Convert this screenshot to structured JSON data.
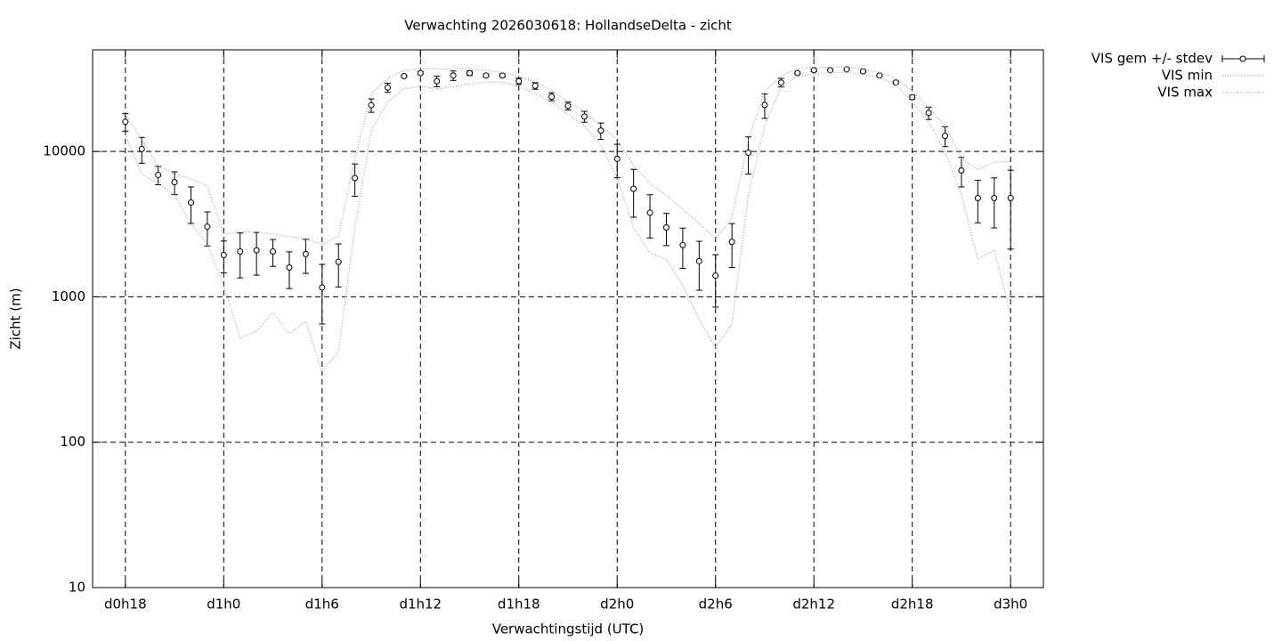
{
  "chart_data": {
    "type": "errorbar-line",
    "title": "Verwachting 2026030618: HollandseDelta - zicht",
    "xlabel": "Verwachtingstijd (UTC)",
    "ylabel": "Zicht (m)",
    "log_y": true,
    "grid": true,
    "xlim": [
      16,
      74
    ],
    "xticks": [
      {
        "value": 18,
        "label": "d0h18"
      },
      {
        "value": 24,
        "label": "d1h0"
      },
      {
        "value": 30,
        "label": "d1h6"
      },
      {
        "value": 36,
        "label": "d1h12"
      },
      {
        "value": 42,
        "label": "d1h18"
      },
      {
        "value": 48,
        "label": "d2h0"
      },
      {
        "value": 54,
        "label": "d2h6"
      },
      {
        "value": 60,
        "label": "d2h12"
      },
      {
        "value": 66,
        "label": "d2h18"
      },
      {
        "value": 72,
        "label": "d3h0"
      }
    ],
    "ylim": [
      10,
      50000
    ],
    "yticks": [
      10,
      100,
      1000,
      10000
    ],
    "x": [
      18,
      19,
      20,
      21,
      22,
      23,
      24,
      25,
      26,
      27,
      28,
      29,
      30,
      31,
      32,
      33,
      34,
      35,
      36,
      37,
      38,
      39,
      40,
      41,
      42,
      43,
      44,
      45,
      46,
      47,
      48,
      49,
      50,
      51,
      52,
      53,
      54,
      55,
      56,
      57,
      58,
      59,
      60,
      61,
      62,
      63,
      64,
      65,
      66,
      67,
      68,
      69,
      70,
      71,
      72
    ],
    "series": [
      {
        "name": "VIS gem +/- stdev",
        "color": "#000000",
        "style": "errorbar",
        "values": [
          16000,
          10400,
          6900,
          6150,
          4450,
          3040,
          1940,
          2050,
          2090,
          2050,
          1590,
          1970,
          1160,
          1740,
          6560,
          20800,
          27500,
          33000,
          34600,
          30400,
          33300,
          34600,
          33300,
          33300,
          30400,
          28300,
          23800,
          20600,
          17400,
          13900,
          8900,
          5530,
          3790,
          3000,
          2270,
          1760,
          1400,
          2390,
          9800,
          20900,
          29800,
          34600,
          36200,
          36200,
          36700,
          35600,
          33300,
          29800,
          23600,
          18400,
          12800,
          7400,
          4780,
          4780,
          4780
        ],
        "errors": [
          2200,
          2100,
          1000,
          1100,
          1250,
          800,
          480,
          700,
          680,
          430,
          450,
          520,
          510,
          570,
          1650,
          2200,
          2000,
          500,
          700,
          2500,
          2500,
          1300,
          700,
          800,
          1500,
          1500,
          1500,
          1300,
          1500,
          1800,
          2300,
          2000,
          1250,
          750,
          700,
          650,
          550,
          800,
          2800,
          4000,
          2000,
          500,
          800,
          400,
          400,
          500,
          500,
          500,
          700,
          1800,
          2000,
          1700,
          1550,
          1800,
          2650
        ]
      },
      {
        "name": "VIS min",
        "color": "#a0a0a0",
        "style": "dotted",
        "values": [
          13000,
          7000,
          6000,
          5000,
          3200,
          2300,
          1200,
          520,
          580,
          780,
          560,
          680,
          310,
          420,
          3000,
          14000,
          22000,
          27000,
          28000,
          27000,
          28000,
          29000,
          30000,
          30000,
          28000,
          25000,
          22000,
          18000,
          15000,
          11000,
          6600,
          3000,
          2000,
          1800,
          1200,
          700,
          450,
          650,
          5000,
          15000,
          28000,
          33000,
          34000,
          35000,
          35000,
          34000,
          32000,
          29000,
          22000,
          16000,
          10000,
          5000,
          1800,
          2100,
          750
        ]
      },
      {
        "name": "VIS max",
        "color": "#a0a0a0",
        "style": "dotted",
        "values": [
          18000,
          12000,
          8000,
          7000,
          6500,
          5800,
          2700,
          2800,
          2800,
          2700,
          2600,
          2500,
          2300,
          2600,
          9000,
          25000,
          32000,
          36000,
          37000,
          37000,
          37000,
          37000,
          36000,
          35000,
          33000,
          30000,
          26000,
          22000,
          19000,
          15000,
          12000,
          8000,
          6000,
          5000,
          4000,
          3200,
          2500,
          3500,
          12000,
          26000,
          33000,
          37000,
          38000,
          38000,
          38000,
          37000,
          35000,
          32000,
          26000,
          20000,
          15000,
          9000,
          7500,
          8500,
          8500
        ]
      }
    ]
  }
}
